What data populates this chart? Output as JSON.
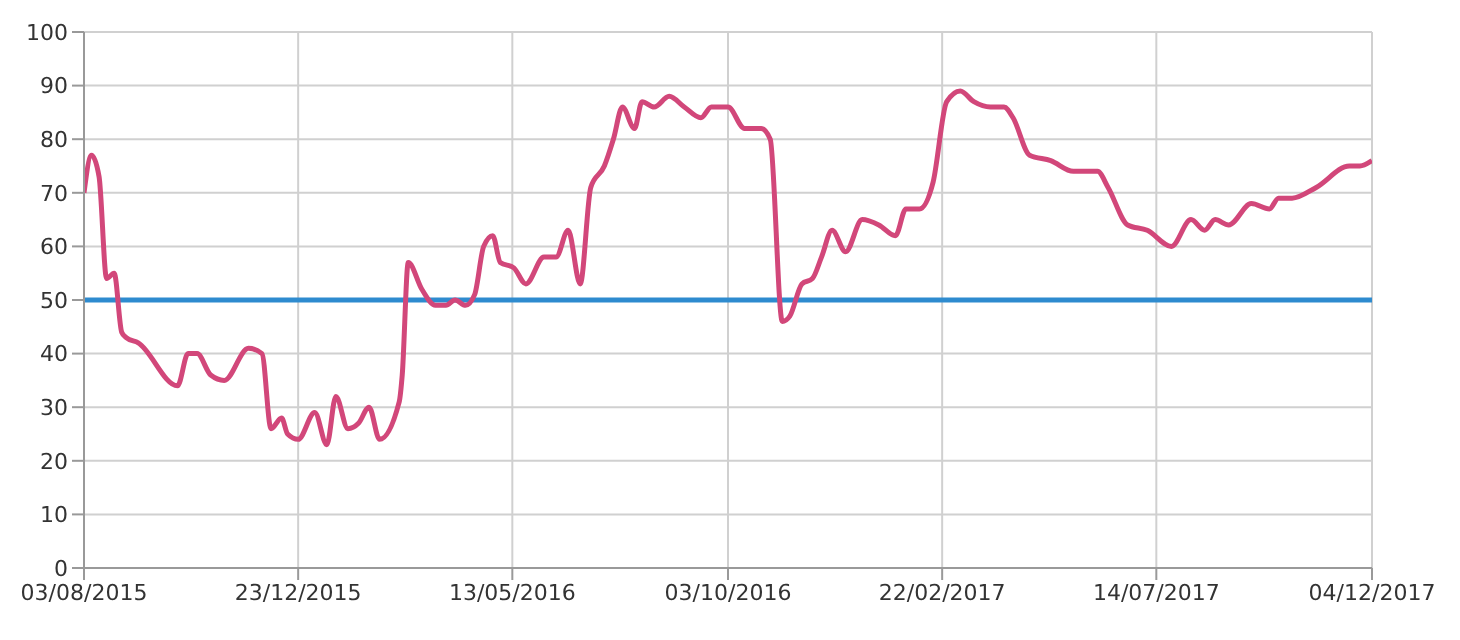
{
  "chart_data": {
    "type": "line",
    "grid": true,
    "line_style": "solid",
    "xlim": [
      "2015-08-03",
      "2017-12-04"
    ],
    "xticks": [
      {
        "value": "2015-08-03",
        "label": "03/08/2015"
      },
      {
        "value": "2015-12-23",
        "label": "23/12/2015"
      },
      {
        "value": "2016-05-13",
        "label": "13/05/2016"
      },
      {
        "value": "2016-10-03",
        "label": "03/10/2016"
      },
      {
        "value": "2017-02-22",
        "label": "22/02/2017"
      },
      {
        "value": "2017-07-14",
        "label": "14/07/2017"
      },
      {
        "value": "2017-12-04",
        "label": "04/12/2017"
      }
    ],
    "ylim": [
      0,
      100
    ],
    "yticks": [
      0,
      10,
      20,
      30,
      40,
      50,
      60,
      70,
      80,
      90,
      100
    ],
    "ref_lines": [
      {
        "axis": "y",
        "value": 50,
        "color": "#2e8bcf"
      }
    ],
    "series": [
      {
        "color": "#d2477a",
        "x": [
          "2015-08-03",
          "2015-08-08",
          "2015-08-13",
          "2015-08-18",
          "2015-08-23",
          "2015-08-28",
          "2015-08-31",
          "2015-09-08",
          "2015-10-04",
          "2015-10-11",
          "2015-10-17",
          "2015-10-26",
          "2015-11-04",
          "2015-11-20",
          "2015-11-29",
          "2015-12-05",
          "2015-12-12",
          "2015-12-16",
          "2015-12-23",
          "2016-01-03",
          "2016-01-11",
          "2016-01-17",
          "2016-01-25",
          "2016-02-01",
          "2016-02-08",
          "2016-02-15",
          "2016-02-28",
          "2016-03-01",
          "2016-03-05",
          "2016-03-14",
          "2016-03-23",
          "2016-03-30",
          "2016-04-05",
          "2016-04-12",
          "2016-04-18",
          "2016-04-24",
          "2016-04-30",
          "2016-05-05",
          "2016-05-14",
          "2016-05-22",
          "2016-06-03",
          "2016-06-11",
          "2016-06-19",
          "2016-06-27",
          "2016-07-04",
          "2016-07-13",
          "2016-07-19",
          "2016-07-25",
          "2016-08-02",
          "2016-08-07",
          "2016-08-15",
          "2016-08-25",
          "2016-09-04",
          "2016-09-15",
          "2016-09-22",
          "2016-10-03",
          "2016-10-14",
          "2016-10-25",
          "2016-10-31",
          "2016-11-08",
          "2016-11-13",
          "2016-11-21",
          "2016-11-28",
          "2016-12-04",
          "2016-12-11",
          "2016-12-20",
          "2016-12-31",
          "2017-01-11",
          "2017-01-22",
          "2017-01-29",
          "2017-02-07",
          "2017-02-16",
          "2017-02-25",
          "2017-03-06",
          "2017-03-15",
          "2017-03-26",
          "2017-04-04",
          "2017-04-10",
          "2017-04-21",
          "2017-05-05",
          "2017-05-20",
          "2017-06-05",
          "2017-06-12",
          "2017-06-25",
          "2017-07-08",
          "2017-07-24",
          "2017-08-06",
          "2017-08-15",
          "2017-08-22",
          "2017-08-31",
          "2017-09-15",
          "2017-09-27",
          "2017-10-03",
          "2017-10-12",
          "2017-10-28",
          "2017-11-19",
          "2017-11-26",
          "2017-12-04"
        ],
        "values": [
          70,
          77,
          73,
          54,
          55,
          44,
          43,
          42,
          34,
          40,
          40,
          36,
          35,
          41,
          40,
          26,
          28,
          25,
          24,
          29,
          23,
          32,
          26,
          27,
          30,
          24,
          31,
          36,
          57,
          52,
          49,
          49,
          50,
          49,
          51,
          60,
          62,
          57,
          56,
          53,
          58,
          58,
          63,
          53,
          71,
          75,
          80,
          86,
          82,
          87,
          86,
          88,
          86,
          84,
          86,
          86,
          82,
          82,
          80,
          46,
          47,
          53,
          54,
          58,
          63,
          59,
          65,
          64,
          62,
          67,
          67,
          72,
          87,
          89,
          87,
          86,
          86,
          84,
          77,
          76,
          74,
          74,
          71,
          64,
          63,
          60,
          65,
          63,
          65,
          64,
          68,
          67,
          69,
          69,
          71,
          75,
          75,
          76
        ]
      }
    ]
  }
}
